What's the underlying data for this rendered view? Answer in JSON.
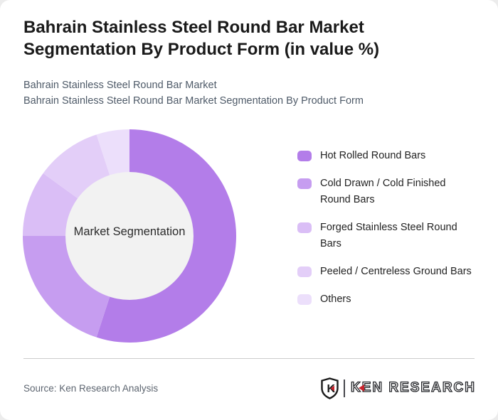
{
  "page": {
    "title": "Bahrain Stainless Steel Round Bar Market Segmentation By Product Form (in value %)",
    "subtitle_line1": "Bahrain Stainless Steel Round Bar Market",
    "subtitle_line2": "Bahrain Stainless Steel Round Bar Market Segmentation By Product Form",
    "source_note": "Source: Ken Research Analysis",
    "logo": {
      "badge_letter": "K",
      "brand_text": "KEN RESEARCH",
      "accent_color": "#c8232c",
      "outline_color": "#1b1b1b"
    }
  },
  "chart_data": {
    "type": "pie",
    "variant": "donut",
    "title": "Bahrain Stainless Steel Round Bar Market Segmentation By Product Form (in value %)",
    "center_label": "Market Segmentation",
    "unit": "value %",
    "direction": "clockwise",
    "start_angle_deg": 0,
    "legend_position": "right",
    "categories": [
      "Hot Rolled Round Bars",
      "Cold Drawn / Cold Finished Round Bars",
      "Forged Stainless Steel Round Bars",
      "Peeled / Centreless Ground Bars",
      "Others"
    ],
    "values": [
      55,
      20,
      10,
      10,
      5
    ],
    "colors": [
      "#b37de9",
      "#c69df0",
      "#dabef6",
      "#e3cef8",
      "#ecdffb"
    ],
    "hole_color": "#f2f2f2"
  }
}
